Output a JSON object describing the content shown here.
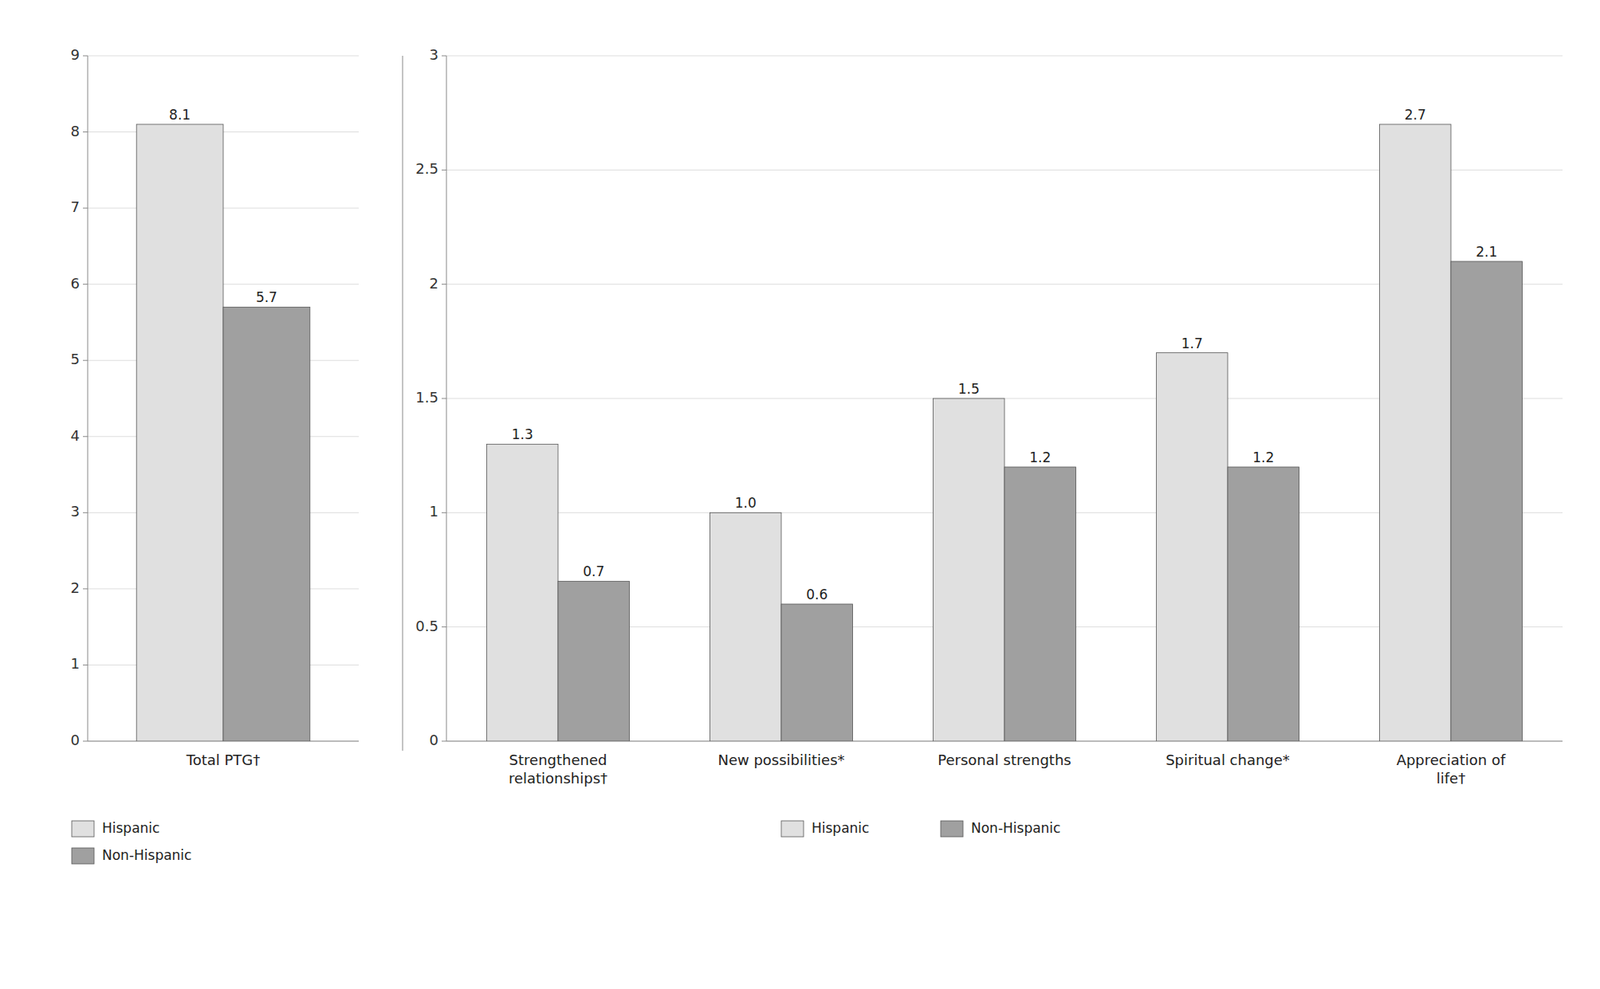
{
  "chart_data": [
    {
      "type": "bar",
      "categories": [
        "Total PTG†"
      ],
      "series": [
        {
          "name": "Hispanic",
          "color": "#e0e0e0",
          "values": [
            8.1
          ]
        },
        {
          "name": "Non-Hispanic",
          "color": "#a0a0a0",
          "values": [
            5.7
          ]
        }
      ],
      "ylim": [
        0,
        9
      ],
      "yticks": [
        0,
        1,
        2,
        3,
        4,
        5,
        6,
        7,
        8,
        9
      ],
      "grid": true,
      "legend": "bottom",
      "data_labels": true
    },
    {
      "type": "bar",
      "categories": [
        "Strengthened\nrelationships†",
        "New possibilities*",
        "Personal strengths",
        "Spiritual change*",
        "Appreciation of\nlife†"
      ],
      "series": [
        {
          "name": "Hispanic",
          "color": "#e0e0e0",
          "values": [
            1.3,
            1.0,
            1.5,
            1.7,
            2.7
          ],
          "value_labels": [
            "1.3",
            "1.0",
            "1.5",
            "1.7",
            "2.7"
          ]
        },
        {
          "name": "Non-Hispanic",
          "color": "#a0a0a0",
          "values": [
            0.7,
            0.6,
            1.2,
            1.2,
            2.1
          ]
        }
      ],
      "ylim": [
        0,
        3
      ],
      "yticks": [
        0,
        0.5,
        1,
        1.5,
        2,
        2.5,
        3
      ],
      "grid": true,
      "legend": "bottom",
      "data_labels": true
    }
  ]
}
